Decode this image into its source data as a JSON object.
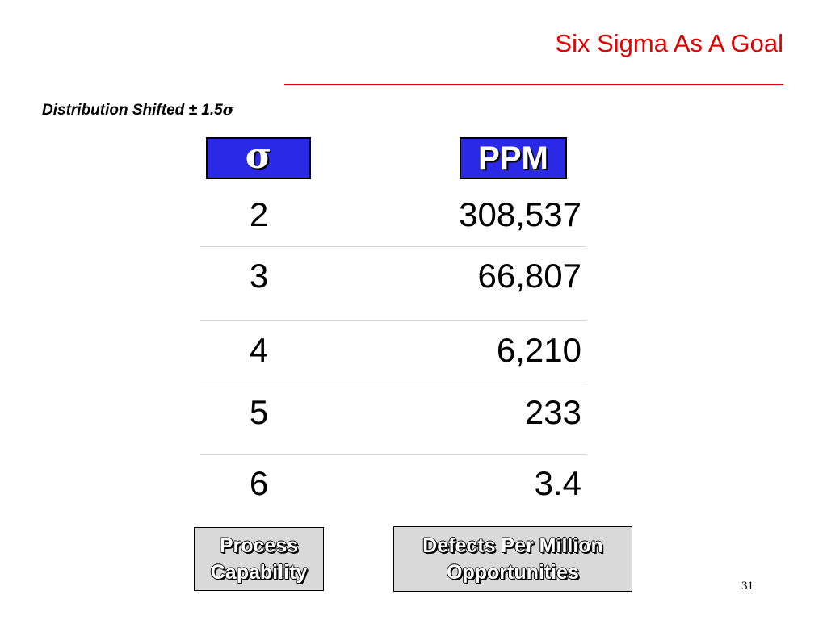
{
  "slide": {
    "title": "Six Sigma As A Goal",
    "subtitle_text": "Distribution Shifted ± 1.5",
    "subtitle_symbol": "σ",
    "page_number": "31"
  },
  "table": {
    "header_sigma": "σ",
    "header_ppm": "PPM",
    "rows": [
      {
        "sigma": "2",
        "ppm": "308,537"
      },
      {
        "sigma": "3",
        "ppm": "66,807"
      },
      {
        "sigma": "4",
        "ppm": "6,210"
      },
      {
        "sigma": "5",
        "ppm": "233"
      },
      {
        "sigma": "6",
        "ppm": "3.4"
      }
    ]
  },
  "labels": {
    "left_line1": "Process",
    "left_line2": "Capability",
    "right_line1": "Defects Per Million",
    "right_line2": "Opportunities"
  },
  "colors": {
    "title": "#e00000",
    "header_fill": "#2a2ae6",
    "label_fill": "#d9d9d9"
  }
}
